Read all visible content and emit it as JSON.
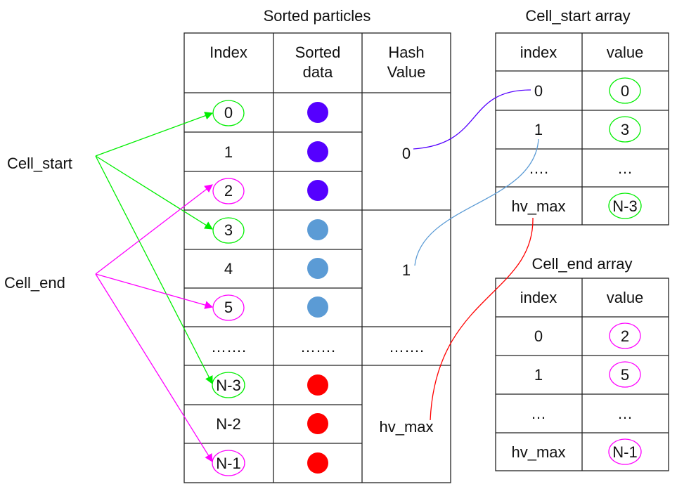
{
  "sorted_table": {
    "title": "Sorted particles",
    "headers": {
      "index": "Index",
      "sorted_data_1": "Sorted",
      "sorted_data_2": "data",
      "hash_1": "Hash",
      "hash_2": "Value"
    },
    "rows": [
      {
        "index": "0",
        "dot_color": "#5500ff"
      },
      {
        "index": "1",
        "dot_color": "#5500ff"
      },
      {
        "index": "2",
        "dot_color": "#5500ff"
      },
      {
        "index": "3",
        "dot_color": "#5b9bd5"
      },
      {
        "index": "4",
        "dot_color": "#5b9bd5"
      },
      {
        "index": "5",
        "dot_color": "#5b9bd5"
      },
      {
        "index": "……."
      },
      {
        "index": "N-3",
        "dot_color": "#ff0000"
      },
      {
        "index": "N-2",
        "dot_color": "#ff0000"
      },
      {
        "index": "N-1",
        "dot_color": "#ff0000"
      }
    ],
    "ellipsis_data": "…….",
    "ellipsis_hash": "…….",
    "hash_values": [
      {
        "label": "0",
        "color": "#5500ff"
      },
      {
        "label": "1",
        "color": "#5b9bd5"
      },
      {
        "label": "hv_max",
        "color": "#ff0000"
      }
    ]
  },
  "cell_start_array": {
    "title": "Cell_start array",
    "title_color": "#00ee00",
    "header_index": "index",
    "header_value": "value",
    "rows": [
      {
        "index": "0",
        "index_color": "#5500ff",
        "value": "0"
      },
      {
        "index": "1",
        "index_color": "#5b9bd5",
        "value": "3"
      },
      {
        "index": "….",
        "index_color": "#111111",
        "value": "…"
      },
      {
        "index": "hv_max",
        "index_color": "#ff0000",
        "value": "N-3"
      }
    ]
  },
  "cell_end_array": {
    "title": "Cell_end array",
    "title_color": "#ff00ff",
    "header_index": "index",
    "header_value": "value",
    "rows": [
      {
        "index": "0",
        "index_color": "#5500ff",
        "value": "2"
      },
      {
        "index": "1",
        "index_color": "#5b9bd5",
        "value": "5"
      },
      {
        "index": "…",
        "index_color": "#111111",
        "value": "…"
      },
      {
        "index": "hv_max",
        "index_color": "#ff0000",
        "value": "N-1"
      }
    ]
  },
  "labels": {
    "cell_start": "Cell_start",
    "cell_start_color": "#00ee00",
    "cell_end": "Cell_end",
    "cell_end_color": "#ff00ff"
  }
}
